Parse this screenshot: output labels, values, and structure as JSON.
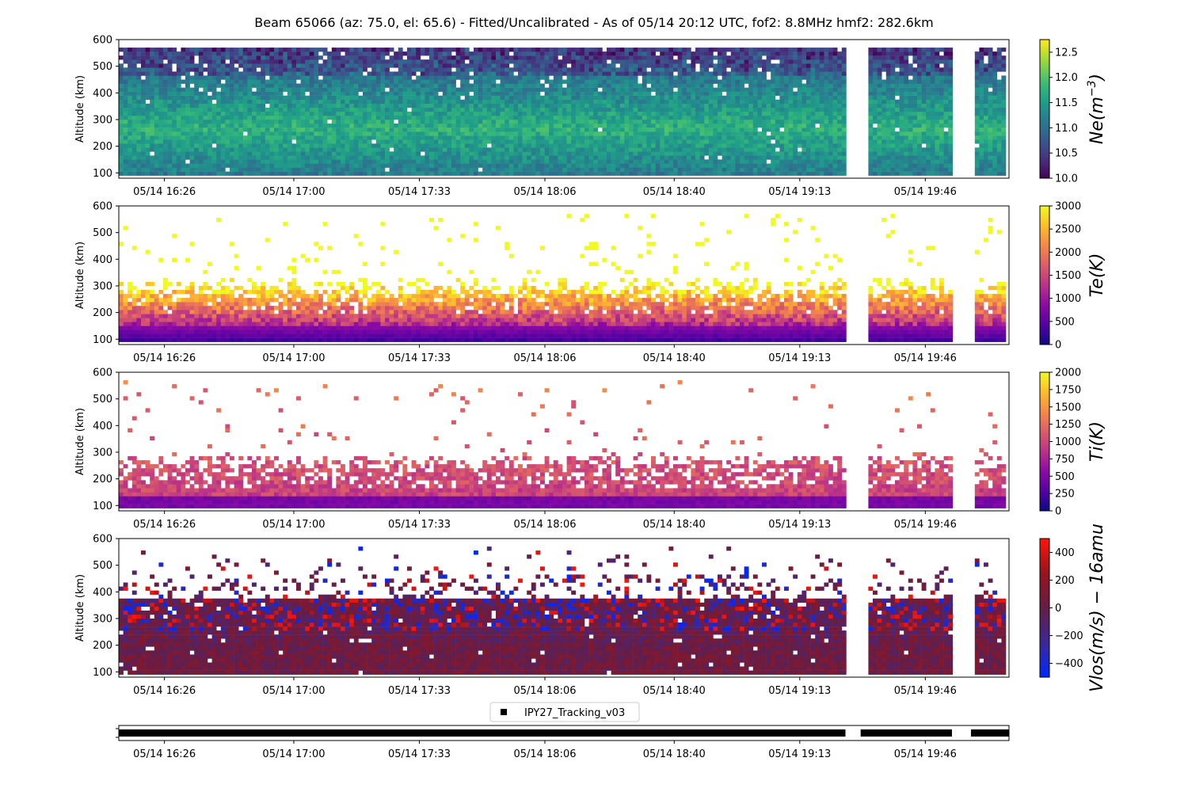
{
  "title": "Beam 65066 (az: 75.0, el: 65.6) - Fitted/Uncalibrated - As of 05/14 20:12 UTC, fof2: 8.8MHz  hmf2: 282.6km",
  "chart_data": [
    {
      "type": "heatmap",
      "name": "ne",
      "ylabel": "Altitude (km)",
      "ylim": [
        80,
        600
      ],
      "yticks": [
        100,
        200,
        300,
        400,
        500,
        600
      ],
      "x_time_range": [
        "16:14",
        "20:08"
      ],
      "xticks": [
        "05/14 16:26",
        "05/14 17:00",
        "05/14 17:33",
        "05/14 18:06",
        "05/14 18:40",
        "05/14 19:13",
        "05/14 19:46"
      ],
      "colorbar": {
        "label": "Ne(m^-3)",
        "label_html": "Ne(m",
        "label_sup": "−3",
        "label_tail": ")",
        "range": [
          10.0,
          12.75
        ],
        "ticks": [
          "10.0",
          "10.5",
          "11.0",
          "11.5",
          "12.0",
          "12.5"
        ],
        "colormap": "viridis"
      },
      "altitude_range": [
        90,
        560
      ],
      "data_gaps": [
        [
          "19:26",
          "19:31"
        ],
        [
          "19:54",
          "19:59"
        ]
      ]
    },
    {
      "type": "heatmap",
      "name": "te",
      "ylabel": "Altitude (km)",
      "ylim": [
        80,
        600
      ],
      "yticks": [
        100,
        200,
        300,
        400,
        500,
        600
      ],
      "xticks": [
        "05/14 16:26",
        "05/14 17:00",
        "05/14 17:33",
        "05/14 18:06",
        "05/14 18:40",
        "05/14 19:13",
        "05/14 19:46"
      ],
      "colorbar": {
        "label": "Te(K)",
        "range": [
          0,
          3000
        ],
        "ticks": [
          "0",
          "500",
          "1000",
          "1500",
          "2000",
          "2500",
          "3000"
        ],
        "colormap": "plasma"
      },
      "altitude_range": [
        90,
        400
      ]
    },
    {
      "type": "heatmap",
      "name": "ti",
      "ylabel": "Altitude (km)",
      "ylim": [
        80,
        600
      ],
      "yticks": [
        100,
        200,
        300,
        400,
        500,
        600
      ],
      "xticks": [
        "05/14 16:26",
        "05/14 17:00",
        "05/14 17:33",
        "05/14 18:06",
        "05/14 18:40",
        "05/14 19:13",
        "05/14 19:46"
      ],
      "colorbar": {
        "label": "Ti(K)",
        "range": [
          0,
          2000
        ],
        "ticks": [
          "0",
          "250",
          "500",
          "750",
          "1000",
          "1250",
          "1500",
          "1750",
          "2000"
        ],
        "colormap": "plasma"
      },
      "altitude_range": [
        90,
        490
      ]
    },
    {
      "type": "heatmap",
      "name": "vlos",
      "ylabel": "Altitude (km)",
      "ylim": [
        80,
        600
      ],
      "yticks": [
        100,
        200,
        300,
        400,
        500,
        600
      ],
      "xticks": [
        "05/14 16:26",
        "05/14 17:00",
        "05/14 17:33",
        "05/14 18:06",
        "05/14 18:40",
        "05/14 19:13",
        "05/14 19:46"
      ],
      "colorbar": {
        "label": "Vlos(m/s) − 16amu",
        "range": [
          -500,
          500
        ],
        "ticks": [
          "−400",
          "−200",
          "0",
          "200",
          "400"
        ],
        "colormap": "bwr-dark"
      },
      "altitude_range": [
        90,
        560
      ]
    }
  ],
  "legend": {
    "entry": "IPY27_Tracking_v03"
  },
  "experiment_bar": {
    "xticks": [
      "05/14 16:26",
      "05/14 17:00",
      "05/14 17:33",
      "05/14 18:06",
      "05/14 18:40",
      "05/14 19:13",
      "05/14 19:46"
    ],
    "segments": [
      [
        "16:14",
        "19:25"
      ],
      [
        "19:29",
        "19:53"
      ],
      [
        "19:58",
        "20:08"
      ]
    ]
  }
}
